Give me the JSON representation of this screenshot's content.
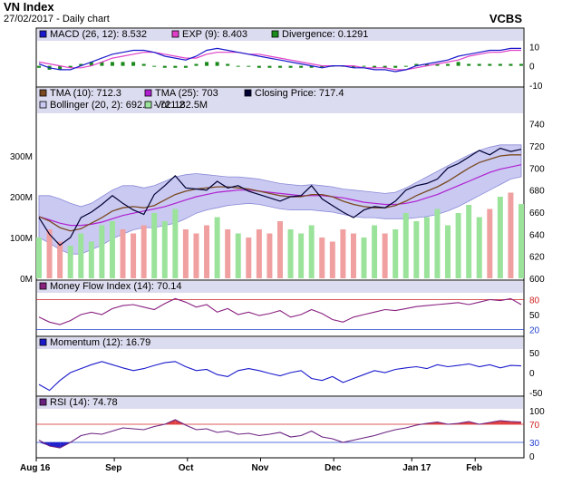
{
  "header": {
    "title": "VN Index",
    "subtitle": "27/02/2017 - Daily chart",
    "brand": "VCBS"
  },
  "colors": {
    "panel_border": "#000000",
    "legend_bg": "#dcdcf0",
    "band_fill": "#c9c9f2",
    "macd": "#1a1acc",
    "exp": "#e040c8",
    "divergence": "#1a8a1a",
    "tma10": "#7a4a20",
    "tma25": "#b020d0",
    "close": "#000033",
    "vol_up": "#9be39b",
    "vol_down": "#f0a0a0",
    "mfi": "#8a2080",
    "momentum": "#1a1acc",
    "rsi": "#6a2080",
    "over_fill": "#e04040",
    "under_fill": "#2020cc",
    "ref_red": "#d02020",
    "ref_blue": "#2040d0"
  },
  "x_axis_dates": [
    "Aug 16",
    "Sep",
    "Oct",
    "Nov",
    "Dec",
    "Jan 17",
    "Feb"
  ],
  "chart_data": [
    {
      "type": "line",
      "panel": "macd",
      "legend": [
        {
          "label": "MACD (26, 12): 8.532",
          "color": "#1a1acc"
        },
        {
          "label": "EXP (9): 8.403",
          "color": "#e040c8"
        },
        {
          "label": "Divergence: 0.1291",
          "color": "#1a8a1a"
        }
      ],
      "ylim": [
        -10,
        12
      ],
      "yticks": [
        "10",
        "0",
        "-10"
      ],
      "ytick_values": [
        10,
        0,
        -10
      ],
      "series": [
        {
          "name": "MACD (26, 12)",
          "values": [
            1,
            -1,
            -2,
            -2,
            0,
            2,
            4,
            6,
            7,
            8,
            8,
            7,
            5,
            4,
            3,
            5,
            8,
            9,
            8,
            7,
            6,
            5,
            4,
            3,
            2,
            1,
            0,
            -1,
            0,
            0,
            -1,
            -1,
            -2,
            -2,
            -3,
            -2,
            0,
            1,
            2,
            3,
            5,
            6,
            7,
            8,
            8,
            9,
            9
          ]
        },
        {
          "name": "EXP (9)",
          "values": [
            2,
            1,
            0,
            -1,
            -1,
            0,
            2,
            4,
            5,
            6,
            7,
            7,
            6,
            5,
            4,
            4,
            6,
            7,
            7,
            7,
            6,
            6,
            5,
            4,
            3,
            2,
            1,
            0,
            0,
            0,
            0,
            -1,
            -1,
            -1,
            -2,
            -2,
            -1,
            0,
            1,
            2,
            3,
            5,
            6,
            7,
            7,
            8,
            8
          ]
        },
        {
          "name": "Divergence",
          "values": [
            -1,
            -2,
            -2,
            -1,
            1,
            2,
            2,
            2,
            2,
            2,
            1,
            0,
            -1,
            -1,
            -1,
            1,
            2,
            2,
            1,
            0,
            0,
            -1,
            -1,
            -1,
            -1,
            -1,
            -1,
            -1,
            0,
            0,
            -1,
            0,
            -1,
            -1,
            -1,
            0,
            1,
            1,
            1,
            1,
            2,
            1,
            1,
            1,
            1,
            1,
            1
          ]
        }
      ]
    },
    {
      "type": "line",
      "panel": "price",
      "legend": [
        {
          "label": "TMA (10): 712.3",
          "color": "#7a4a20"
        },
        {
          "label": "TMA (25): 703",
          "color": "#b020d0"
        },
        {
          "label": "Closing Price: 717.4",
          "color": "#000033"
        },
        {
          "label": "Bollinger (20, 2): 692.3 - 721.2",
          "color": "#c9c9f2"
        },
        {
          "label": "Vol: 182.5M",
          "color": "#9be39b"
        }
      ],
      "ylim": [
        600,
        748
      ],
      "yticks": [
        "740",
        "720",
        "700",
        "680",
        "660",
        "640",
        "620",
        "600"
      ],
      "ytick_values": [
        740,
        720,
        700,
        680,
        660,
        640,
        620,
        600
      ],
      "vol_ylim": [
        0,
        400
      ],
      "vol_ticks": [
        "300M",
        "200M",
        "100M",
        "0M"
      ],
      "vol_tick_values": [
        300,
        200,
        100,
        0
      ],
      "series": [
        {
          "name": "Closing Price",
          "values": [
            655,
            640,
            630,
            637,
            655,
            660,
            667,
            675,
            668,
            662,
            658,
            676,
            684,
            693,
            682,
            681,
            680,
            688,
            682,
            684,
            679,
            676,
            673,
            670,
            674,
            675,
            684,
            672,
            666,
            660,
            655,
            662,
            665,
            664,
            670,
            680,
            684,
            686,
            690,
            700,
            704,
            710,
            716,
            712,
            718,
            715,
            717
          ]
        },
        {
          "name": "TMA (10)",
          "values": [
            656,
            652,
            646,
            643,
            645,
            650,
            655,
            661,
            664,
            665,
            664,
            666,
            671,
            676,
            679,
            681,
            682,
            683,
            683,
            682,
            681,
            679,
            677,
            675,
            674,
            674,
            676,
            676,
            674,
            670,
            667,
            665,
            664,
            664,
            666,
            670,
            675,
            679,
            683,
            688,
            694,
            700,
            705,
            708,
            711,
            712,
            712
          ]
        },
        {
          "name": "TMA (25)",
          "values": [
            656,
            653,
            650,
            648,
            648,
            649,
            651,
            654,
            657,
            659,
            661,
            663,
            665,
            668,
            671,
            674,
            676,
            678,
            679,
            680,
            680,
            679,
            678,
            677,
            676,
            675,
            675,
            675,
            674,
            673,
            671,
            669,
            668,
            667,
            667,
            668,
            670,
            673,
            676,
            680,
            684,
            688,
            692,
            696,
            699,
            701,
            703
          ]
        },
        {
          "name": "Bollinger Upper",
          "values": [
            675,
            675,
            672,
            668,
            665,
            668,
            674,
            680,
            684,
            684,
            682,
            684,
            688,
            692,
            694,
            695,
            694,
            693,
            692,
            692,
            691,
            690,
            688,
            686,
            685,
            684,
            685,
            684,
            683,
            681,
            680,
            679,
            678,
            677,
            678,
            682,
            687,
            692,
            697,
            702,
            707,
            712,
            716,
            719,
            721,
            721,
            721
          ]
        },
        {
          "name": "Bollinger Lower",
          "values": [
            637,
            632,
            626,
            622,
            622,
            626,
            630,
            636,
            640,
            644,
            646,
            646,
            648,
            650,
            654,
            659,
            662,
            664,
            666,
            667,
            668,
            667,
            665,
            663,
            662,
            662,
            662,
            661,
            660,
            658,
            656,
            655,
            655,
            654,
            654,
            654,
            655,
            656,
            658,
            661,
            665,
            670,
            675,
            680,
            685,
            690,
            692
          ]
        },
        {
          "name": "Vol",
          "values": [
            100,
            120,
            90,
            80,
            110,
            90,
            130,
            140,
            120,
            110,
            130,
            160,
            140,
            170,
            120,
            110,
            130,
            150,
            120,
            110,
            100,
            120,
            110,
            140,
            120,
            110,
            130,
            100,
            90,
            120,
            110,
            100,
            130,
            110,
            120,
            160,
            140,
            150,
            170,
            130,
            160,
            180,
            150,
            170,
            200,
            210,
            182
          ]
        }
      ]
    },
    {
      "type": "line",
      "panel": "mfi",
      "legend": [
        {
          "label": "Money Flow Index (14): 70.14",
          "color": "#8a2080"
        }
      ],
      "ylim": [
        10,
        90
      ],
      "yticks": [
        "80",
        "50",
        "20"
      ],
      "ytick_values": [
        80,
        50,
        20
      ],
      "ref_lines": [
        80,
        20
      ],
      "series": [
        {
          "name": "Money Flow Index (14)",
          "values": [
            45,
            35,
            30,
            38,
            50,
            55,
            50,
            62,
            68,
            70,
            65,
            60,
            72,
            82,
            75,
            65,
            70,
            55,
            62,
            50,
            55,
            48,
            52,
            58,
            45,
            50,
            60,
            52,
            40,
            35,
            45,
            50,
            55,
            60,
            58,
            62,
            66,
            68,
            70,
            72,
            74,
            70,
            75,
            80,
            78,
            82,
            70
          ]
        }
      ]
    },
    {
      "type": "line",
      "panel": "momentum",
      "legend": [
        {
          "label": "Momentum (12): 16.79",
          "color": "#1a1acc"
        }
      ],
      "ylim": [
        -55,
        55
      ],
      "yticks": [
        "50",
        "0",
        "-50"
      ],
      "ytick_values": [
        50,
        0,
        -50
      ],
      "series": [
        {
          "name": "Momentum (12)",
          "values": [
            -30,
            -45,
            -20,
            0,
            10,
            20,
            28,
            20,
            12,
            5,
            10,
            18,
            25,
            28,
            15,
            5,
            8,
            -5,
            -10,
            5,
            10,
            5,
            -2,
            -8,
            0,
            5,
            -15,
            -20,
            -10,
            -25,
            -15,
            -5,
            5,
            0,
            8,
            12,
            15,
            10,
            20,
            15,
            18,
            22,
            15,
            20,
            12,
            18,
            17
          ]
        }
      ]
    },
    {
      "type": "line",
      "panel": "rsi",
      "legend": [
        {
          "label": "RSI (14): 74.78",
          "color": "#6a2080"
        }
      ],
      "ylim": [
        0,
        100
      ],
      "yticks": [
        "100",
        "70",
        "30",
        "0"
      ],
      "ytick_values": [
        100,
        70,
        30,
        0
      ],
      "ref_lines": [
        70,
        30
      ],
      "series": [
        {
          "name": "RSI (14)",
          "values": [
            35,
            22,
            18,
            30,
            45,
            50,
            48,
            55,
            62,
            60,
            58,
            65,
            70,
            80,
            68,
            58,
            60,
            52,
            55,
            48,
            50,
            45,
            48,
            52,
            42,
            45,
            55,
            42,
            38,
            30,
            35,
            40,
            45,
            52,
            58,
            62,
            68,
            72,
            75,
            70,
            72,
            76,
            70,
            74,
            78,
            76,
            75
          ]
        }
      ]
    }
  ]
}
